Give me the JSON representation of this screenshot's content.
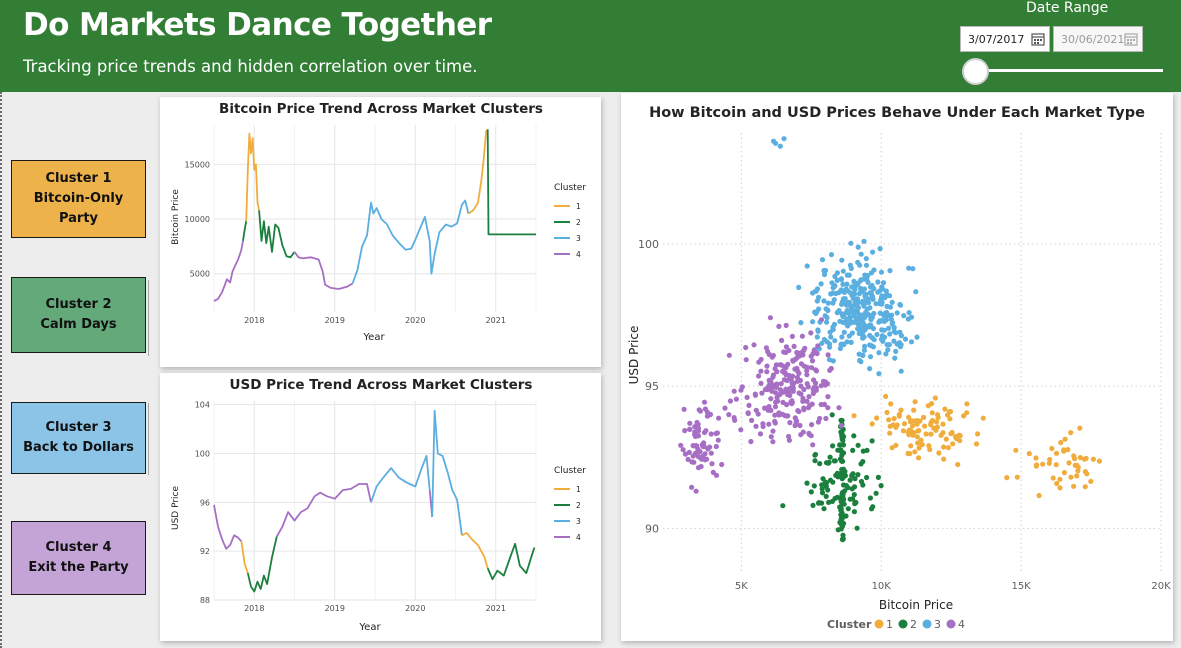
{
  "header": {
    "title": "Do Markets Dance Together",
    "subtitle": "Tracking price trends and hidden correlation over time.",
    "date_range_label": "Date Range",
    "start_date": "3/07/2017",
    "end_date": "30/06/2021",
    "slider_position": 0.0,
    "calendar_icon": "calendar-icon"
  },
  "clusters": [
    {
      "line1": "Cluster 1",
      "line2": "Bitcoin-Only Party",
      "color": "#edb24a"
    },
    {
      "line1": "Cluster 2",
      "line2": "Calm Days",
      "color": "#63a97a"
    },
    {
      "line1": "Cluster 3",
      "line2": "Back to Dollars",
      "color": "#8cc4e8"
    },
    {
      "line1": "Cluster 4",
      "line2": "Exit the Party",
      "color": "#c4a3d6"
    }
  ],
  "series_colors": {
    "1": "#f0ad3d",
    "2": "#1b7f3e",
    "3": "#5aaee0",
    "4": "#a66fc4"
  },
  "chart_data": [
    {
      "type": "line",
      "title": "Bitcoin Price Trend Across Market Clusters",
      "xlabel": "Year",
      "ylabel": "Bitcoin Price",
      "x_ticks": [
        "2018",
        "2019",
        "2020",
        "2021"
      ],
      "y_ticks": [
        5000,
        10000,
        15000
      ],
      "xlim": [
        2017.5,
        2021.5
      ],
      "ylim": [
        1500,
        18600
      ],
      "legend_title": "Cluster",
      "legend": [
        "1",
        "2",
        "3",
        "4"
      ],
      "legend_position": "right",
      "grid": true,
      "segments": [
        {
          "cluster": "4",
          "points": [
            [
              2017.5,
              2500
            ],
            [
              2017.55,
              2700
            ],
            [
              2017.6,
              3300
            ],
            [
              2017.63,
              3900
            ],
            [
              2017.66,
              4500
            ],
            [
              2017.7,
              4200
            ],
            [
              2017.73,
              5200
            ],
            [
              2017.76,
              5700
            ],
            [
              2017.8,
              6300
            ],
            [
              2017.84,
              7200
            ],
            [
              2017.86,
              8000
            ]
          ]
        },
        {
          "cluster": "2",
          "points": [
            [
              2017.86,
              8000
            ],
            [
              2017.88,
              9000
            ],
            [
              2017.9,
              9800
            ]
          ]
        },
        {
          "cluster": "1",
          "points": [
            [
              2017.9,
              9800
            ],
            [
              2017.92,
              14500
            ],
            [
              2017.94,
              17800
            ],
            [
              2017.96,
              16000
            ],
            [
              2017.98,
              17400
            ],
            [
              2018.0,
              14500
            ],
            [
              2018.02,
              15000
            ],
            [
              2018.04,
              11500
            ],
            [
              2018.06,
              10800
            ]
          ]
        },
        {
          "cluster": "2",
          "points": [
            [
              2018.06,
              10800
            ],
            [
              2018.09,
              8000
            ],
            [
              2018.12,
              9800
            ],
            [
              2018.15,
              7800
            ],
            [
              2018.18,
              9300
            ],
            [
              2018.22,
              7000
            ],
            [
              2018.26,
              9500
            ],
            [
              2018.3,
              9200
            ],
            [
              2018.35,
              7600
            ],
            [
              2018.4,
              6600
            ],
            [
              2018.45,
              6500
            ],
            [
              2018.5,
              7000
            ]
          ]
        },
        {
          "cluster": "4",
          "points": [
            [
              2018.5,
              7000
            ],
            [
              2018.55,
              6500
            ],
            [
              2018.6,
              6400
            ],
            [
              2018.7,
              6500
            ],
            [
              2018.8,
              6300
            ],
            [
              2018.85,
              5200
            ],
            [
              2018.88,
              4000
            ],
            [
              2018.95,
              3700
            ],
            [
              2019.05,
              3600
            ],
            [
              2019.15,
              3800
            ],
            [
              2019.22,
              4100
            ]
          ]
        },
        {
          "cluster": "3",
          "points": [
            [
              2019.22,
              4100
            ],
            [
              2019.28,
              5300
            ],
            [
              2019.34,
              7500
            ],
            [
              2019.4,
              8500
            ],
            [
              2019.45,
              11500
            ],
            [
              2019.48,
              10500
            ],
            [
              2019.52,
              11000
            ],
            [
              2019.58,
              10000
            ],
            [
              2019.65,
              9500
            ],
            [
              2019.72,
              8500
            ],
            [
              2019.8,
              7800
            ],
            [
              2019.88,
              7200
            ],
            [
              2019.95,
              7300
            ],
            [
              2020.0,
              8100
            ],
            [
              2020.08,
              9500
            ],
            [
              2020.12,
              10200
            ],
            [
              2020.18,
              8000
            ],
            [
              2020.2,
              5000
            ],
            [
              2020.24,
              6800
            ],
            [
              2020.3,
              8800
            ],
            [
              2020.38,
              9500
            ],
            [
              2020.45,
              9300
            ],
            [
              2020.52,
              9600
            ],
            [
              2020.58,
              11300
            ],
            [
              2020.62,
              11700
            ],
            [
              2020.66,
              10500
            ]
          ]
        },
        {
          "cluster": "1",
          "points": [
            [
              2020.66,
              10500
            ],
            [
              2020.72,
              10800
            ],
            [
              2020.78,
              11500
            ],
            [
              2020.82,
              13500
            ],
            [
              2020.85,
              15500
            ],
            [
              2020.88,
              18000
            ],
            [
              2020.9,
              18200
            ]
          ]
        },
        {
          "cluster": "2",
          "points": [
            [
              2020.9,
              18200
            ],
            [
              2020.91,
              8600
            ],
            [
              2021.5,
              8600
            ]
          ]
        }
      ]
    },
    {
      "type": "line",
      "title": "USD Price Trend Across Market Clusters",
      "xlabel": "Year",
      "ylabel": "USD Price",
      "x_ticks": [
        "2018",
        "2019",
        "2020",
        "2021"
      ],
      "y_ticks": [
        88,
        92,
        96,
        100,
        104
      ],
      "xlim": [
        2017.5,
        2021.5
      ],
      "ylim": [
        88,
        104.3
      ],
      "legend_title": "Cluster",
      "legend": [
        "1",
        "2",
        "3",
        "4"
      ],
      "legend_position": "right",
      "grid": true,
      "segments": [
        {
          "cluster": "4",
          "points": [
            [
              2017.5,
              95.8
            ],
            [
              2017.55,
              94.0
            ],
            [
              2017.6,
              93.0
            ],
            [
              2017.65,
              92.2
            ],
            [
              2017.7,
              92.5
            ],
            [
              2017.75,
              93.3
            ],
            [
              2017.8,
              93.1
            ],
            [
              2017.84,
              92.8
            ]
          ]
        },
        {
          "cluster": "1",
          "points": [
            [
              2017.84,
              92.8
            ],
            [
              2017.88,
              91.0
            ],
            [
              2017.92,
              90.2
            ]
          ]
        },
        {
          "cluster": "2",
          "points": [
            [
              2017.92,
              90.2
            ],
            [
              2017.96,
              89.1
            ],
            [
              2018.0,
              88.7
            ],
            [
              2018.04,
              89.5
            ],
            [
              2018.08,
              88.9
            ],
            [
              2018.12,
              90.0
            ],
            [
              2018.16,
              89.3
            ],
            [
              2018.22,
              91.5
            ],
            [
              2018.28,
              93.2
            ]
          ]
        },
        {
          "cluster": "4",
          "points": [
            [
              2018.28,
              93.2
            ],
            [
              2018.35,
              94.0
            ],
            [
              2018.42,
              95.2
            ],
            [
              2018.5,
              94.5
            ],
            [
              2018.58,
              95.2
            ],
            [
              2018.66,
              95.5
            ],
            [
              2018.75,
              96.5
            ],
            [
              2018.82,
              96.8
            ],
            [
              2018.9,
              96.5
            ],
            [
              2019.0,
              96.3
            ],
            [
              2019.1,
              97.0
            ],
            [
              2019.2,
              97.1
            ],
            [
              2019.3,
              97.5
            ],
            [
              2019.4,
              97.5
            ],
            [
              2019.45,
              96.0
            ]
          ]
        },
        {
          "cluster": "3",
          "points": [
            [
              2019.45,
              96.0
            ],
            [
              2019.52,
              97.3
            ],
            [
              2019.6,
              98.0
            ],
            [
              2019.7,
              98.8
            ],
            [
              2019.8,
              98.0
            ],
            [
              2019.9,
              97.6
            ],
            [
              2020.0,
              97.3
            ],
            [
              2020.08,
              98.8
            ],
            [
              2020.14,
              99.8
            ],
            [
              2020.18,
              97.0
            ]
          ]
        },
        {
          "cluster": "4",
          "points": [
            [
              2020.18,
              97.0
            ],
            [
              2020.21,
              94.8
            ]
          ]
        },
        {
          "cluster": "3",
          "points": [
            [
              2020.21,
              94.8
            ],
            [
              2020.24,
              103.5
            ],
            [
              2020.28,
              100.0
            ],
            [
              2020.34,
              99.8
            ],
            [
              2020.4,
              98.5
            ],
            [
              2020.46,
              97.0
            ],
            [
              2020.52,
              96.2
            ],
            [
              2020.58,
              93.3
            ]
          ]
        },
        {
          "cluster": "1",
          "points": [
            [
              2020.58,
              93.3
            ],
            [
              2020.64,
              93.5
            ],
            [
              2020.7,
              93.0
            ],
            [
              2020.78,
              92.5
            ],
            [
              2020.86,
              91.5
            ],
            [
              2020.9,
              90.6
            ]
          ]
        },
        {
          "cluster": "2",
          "points": [
            [
              2020.9,
              90.6
            ],
            [
              2020.96,
              89.7
            ],
            [
              2021.02,
              90.4
            ],
            [
              2021.1,
              90.0
            ],
            [
              2021.18,
              91.5
            ],
            [
              2021.24,
              92.6
            ],
            [
              2021.3,
              90.8
            ],
            [
              2021.38,
              90.2
            ],
            [
              2021.44,
              91.5
            ],
            [
              2021.48,
              92.3
            ]
          ]
        }
      ]
    },
    {
      "type": "scatter",
      "title": "How Bitcoin and USD Prices Behave Under Each Market Type",
      "xlabel": "Bitcoin Price",
      "ylabel": "USD Price",
      "x_ticks": [
        5000,
        10000,
        15000,
        20000
      ],
      "x_tick_labels": [
        "5K",
        "10K",
        "15K",
        "20K"
      ],
      "y_ticks": [
        90,
        95,
        100
      ],
      "xlim": [
        2200,
        20000
      ],
      "ylim": [
        88.5,
        103.9
      ],
      "legend_title": "Cluster",
      "legend": [
        "1",
        "2",
        "3",
        "4"
      ],
      "legend_position": "bottom",
      "grid": true,
      "groups": [
        {
          "cluster": "1",
          "center": [
            11500,
            93.5
          ],
          "spread": [
            1700,
            0.9
          ],
          "n": 95
        },
        {
          "cluster": "1",
          "center": [
            16500,
            92.3
          ],
          "spread": [
            1400,
            0.9
          ],
          "n": 45
        },
        {
          "cluster": "2",
          "center": [
            8600,
            91.6
          ],
          "spread": [
            1300,
            1.5
          ],
          "n": 150
        },
        {
          "cluster": "3",
          "center": [
            9200,
            97.7
          ],
          "spread": [
            1500,
            1.6
          ],
          "n": 330
        },
        {
          "cluster": "3",
          "center": [
            6300,
            103.5
          ],
          "spread": [
            300,
            0.3
          ],
          "n": 4
        },
        {
          "cluster": "4",
          "center": [
            6700,
            95.0
          ],
          "spread": [
            1500,
            1.6
          ],
          "n": 230
        },
        {
          "cluster": "4",
          "center": [
            3500,
            93.0
          ],
          "spread": [
            700,
            1.3
          ],
          "n": 70
        }
      ]
    }
  ]
}
